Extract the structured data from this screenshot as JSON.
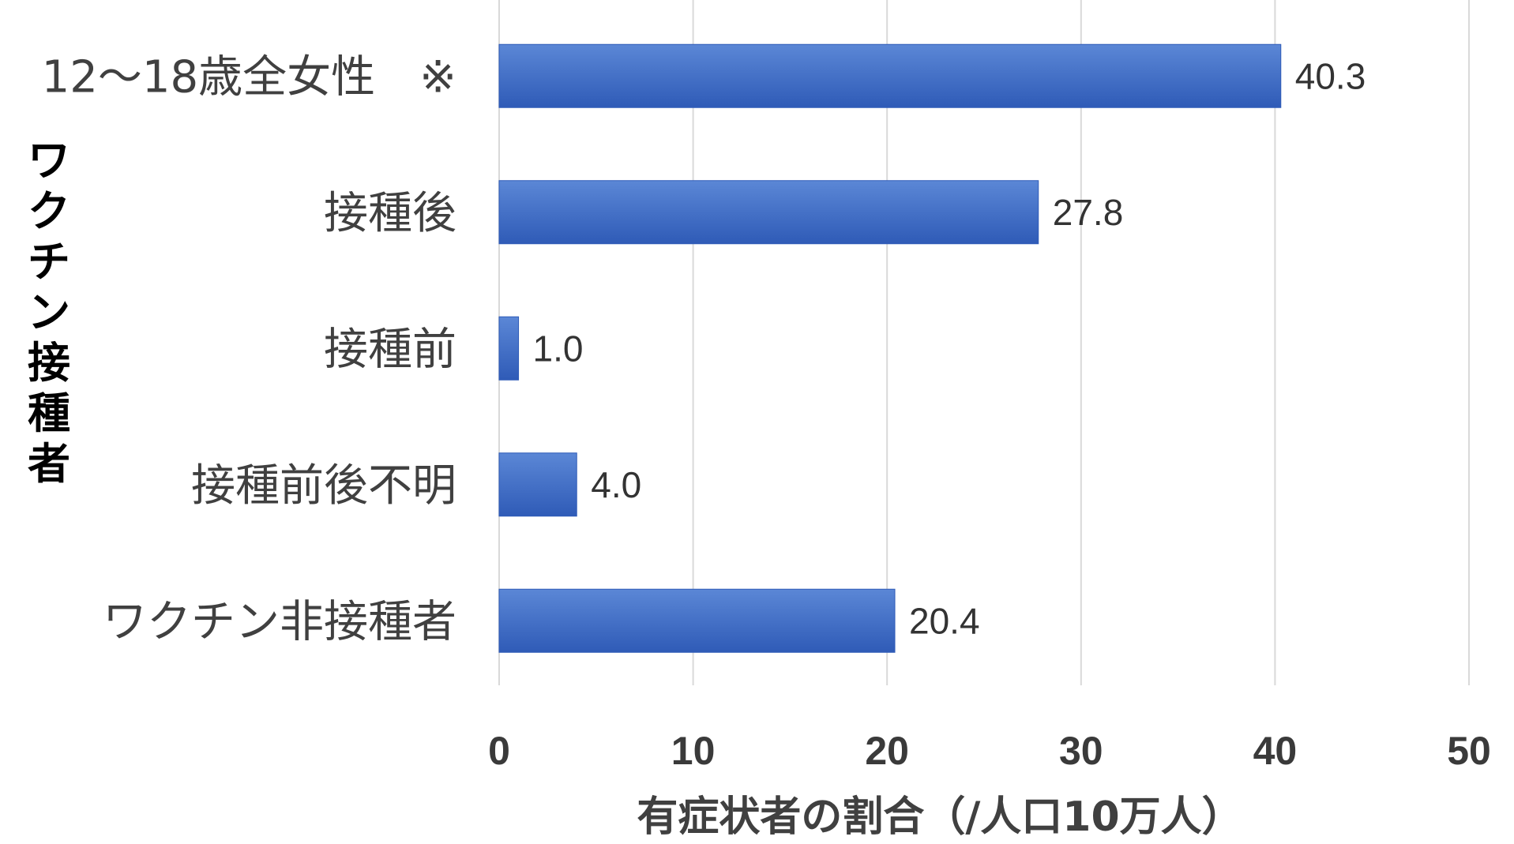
{
  "chart_data": {
    "type": "bar",
    "orientation": "horizontal",
    "categories": [
      "12～18歳全女性　※",
      "接種後",
      "接種前",
      "接種前後不明",
      "ワクチン非接種者"
    ],
    "values": [
      40.3,
      27.8,
      1.0,
      4.0,
      20.4
    ],
    "value_labels": [
      "40.3",
      "27.8",
      "1.0",
      "4.0",
      "20.4"
    ],
    "group_label": "ワクチン接種者",
    "grouped_categories": [
      "接種後",
      "接種前",
      "接種前後不明"
    ],
    "xlabel": "有症状者の割合（/人口10万人）",
    "xlim": [
      0,
      50
    ],
    "xticks": [
      0,
      10,
      20,
      30,
      40,
      50
    ],
    "xtick_labels": [
      "0",
      "10",
      "20",
      "30",
      "40",
      "50"
    ],
    "grid": "vertical",
    "legend": "none",
    "colors": {
      "bar": "#4472C4",
      "bar_light": "#5b87d6",
      "bar_dark": "#2f5bb7",
      "grid": "#d9d9d9"
    }
  }
}
